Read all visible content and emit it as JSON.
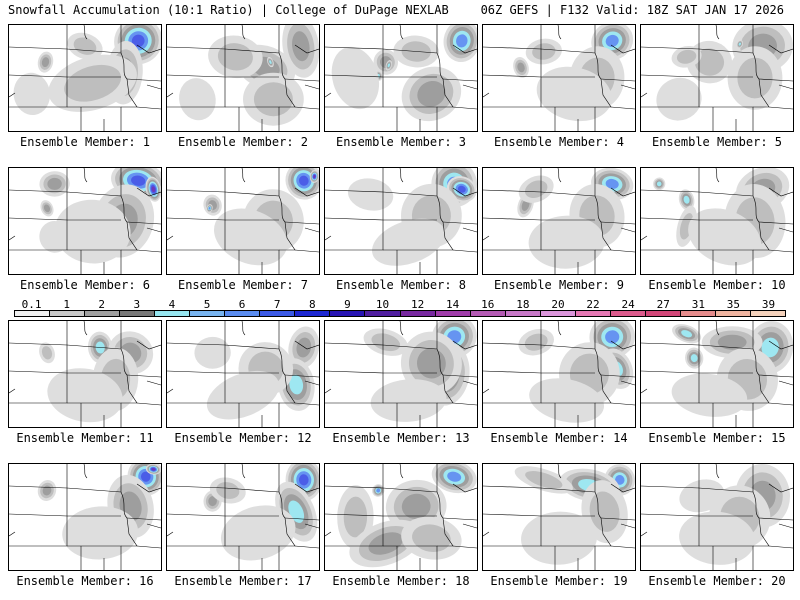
{
  "header": {
    "title_left": "Snowfall Accumulation (10:1 Ratio) | College of DuPage NEXLAB",
    "title_right": "06Z GEFS | F132 Valid: 18Z SAT JAN 17 2026"
  },
  "colorbar": {
    "levels": [
      "0.1",
      "1",
      "2",
      "3",
      "4",
      "5",
      "6",
      "7",
      "8",
      "9",
      "10",
      "12",
      "14",
      "16",
      "18",
      "20",
      "22",
      "24",
      "27",
      "31",
      "35",
      "39"
    ],
    "colors": [
      "#f0f0f0",
      "#c8c8c8",
      "#a0a0a0",
      "#787878",
      "#96e6f0",
      "#78b4f0",
      "#5a8cf0",
      "#3c5ae6",
      "#1e28d2",
      "#2814b4",
      "#501ea0",
      "#7828a0",
      "#a03caa",
      "#b45ab4",
      "#c878c8",
      "#dc96dc",
      "#e678b4",
      "#dc5a8c",
      "#d24678",
      "#e68c8c",
      "#f0b4a0",
      "#f5d2bc"
    ],
    "shade_scale": [
      "#ffffff",
      "#dcdcdc",
      "#b9b9b9",
      "#969696",
      "#96e6f0",
      "#5a8cf0",
      "#3c50e6",
      "#6428b4"
    ]
  },
  "members": [
    {
      "label": "Ensemble Member: 1",
      "spots": [
        [
          0.85,
          0.15,
          0.16,
          0.22,
          6
        ],
        [
          0.76,
          0.45,
          0.12,
          0.3,
          3
        ],
        [
          0.55,
          0.55,
          0.3,
          0.25,
          2
        ],
        [
          0.24,
          0.35,
          0.05,
          0.1,
          3
        ],
        [
          0.15,
          0.65,
          0.12,
          0.2,
          1
        ],
        [
          0.5,
          0.2,
          0.12,
          0.12,
          2
        ]
      ]
    },
    {
      "label": "Ensemble Member: 2",
      "spots": [
        [
          0.88,
          0.2,
          0.12,
          0.3,
          3
        ],
        [
          0.65,
          0.4,
          0.2,
          0.2,
          3
        ],
        [
          0.7,
          0.7,
          0.2,
          0.25,
          2
        ],
        [
          0.68,
          0.35,
          0.02,
          0.05,
          4
        ],
        [
          0.45,
          0.3,
          0.18,
          0.2,
          2
        ],
        [
          0.2,
          0.7,
          0.12,
          0.2,
          1
        ]
      ]
    },
    {
      "label": "Ensemble Member: 3",
      "spots": [
        [
          0.9,
          0.15,
          0.12,
          0.2,
          5
        ],
        [
          0.4,
          0.35,
          0.08,
          0.12,
          3
        ],
        [
          0.42,
          0.38,
          0.02,
          0.05,
          4
        ],
        [
          0.35,
          0.48,
          0.03,
          0.05,
          4
        ],
        [
          0.7,
          0.65,
          0.2,
          0.25,
          3
        ],
        [
          0.6,
          0.25,
          0.15,
          0.15,
          2
        ],
        [
          0.2,
          0.5,
          0.15,
          0.3,
          1
        ]
      ]
    },
    {
      "label": "Ensemble Member: 4",
      "spots": [
        [
          0.85,
          0.15,
          0.14,
          0.18,
          5
        ],
        [
          0.75,
          0.5,
          0.18,
          0.3,
          2
        ],
        [
          0.25,
          0.4,
          0.05,
          0.1,
          3
        ],
        [
          0.6,
          0.65,
          0.25,
          0.25,
          1
        ],
        [
          0.4,
          0.25,
          0.12,
          0.12,
          2
        ]
      ]
    },
    {
      "label": "Ensemble Member: 5",
      "spots": [
        [
          0.8,
          0.2,
          0.2,
          0.25,
          3
        ],
        [
          0.65,
          0.18,
          0.02,
          0.04,
          4
        ],
        [
          0.75,
          0.5,
          0.18,
          0.3,
          2
        ],
        [
          0.25,
          0.7,
          0.15,
          0.2,
          1
        ],
        [
          0.45,
          0.35,
          0.15,
          0.2,
          2
        ],
        [
          0.3,
          0.3,
          0.1,
          0.1,
          2
        ]
      ]
    },
    {
      "label": "Ensemble Member: 6",
      "spots": [
        [
          0.85,
          0.12,
          0.18,
          0.18,
          6
        ],
        [
          0.95,
          0.2,
          0.05,
          0.12,
          7
        ],
        [
          0.75,
          0.5,
          0.2,
          0.35,
          3
        ],
        [
          0.3,
          0.15,
          0.1,
          0.12,
          3
        ],
        [
          0.25,
          0.38,
          0.04,
          0.08,
          3
        ],
        [
          0.55,
          0.6,
          0.25,
          0.3,
          1
        ],
        [
          0.3,
          0.65,
          0.1,
          0.15,
          1
        ]
      ]
    },
    {
      "label": "Ensemble Member: 7",
      "spots": [
        [
          0.9,
          0.12,
          0.12,
          0.18,
          6
        ],
        [
          0.97,
          0.08,
          0.03,
          0.06,
          7
        ],
        [
          0.3,
          0.35,
          0.06,
          0.1,
          3
        ],
        [
          0.28,
          0.38,
          0.02,
          0.04,
          5
        ],
        [
          0.7,
          0.5,
          0.2,
          0.3,
          2
        ],
        [
          0.55,
          0.65,
          0.25,
          0.25,
          1
        ]
      ]
    },
    {
      "label": "Ensemble Member: 8",
      "spots": [
        [
          0.85,
          0.15,
          0.15,
          0.22,
          5
        ],
        [
          0.9,
          0.2,
          0.1,
          0.12,
          6
        ],
        [
          0.7,
          0.45,
          0.2,
          0.3,
          2
        ],
        [
          0.55,
          0.7,
          0.25,
          0.2,
          1
        ],
        [
          0.3,
          0.25,
          0.15,
          0.15,
          1
        ]
      ]
    },
    {
      "label": "Ensemble Member: 9",
      "spots": [
        [
          0.85,
          0.15,
          0.14,
          0.15,
          5
        ],
        [
          0.75,
          0.45,
          0.18,
          0.3,
          2
        ],
        [
          0.28,
          0.35,
          0.05,
          0.12,
          3
        ],
        [
          0.55,
          0.7,
          0.25,
          0.25,
          1
        ],
        [
          0.35,
          0.2,
          0.12,
          0.12,
          2
        ]
      ]
    },
    {
      "label": "Ensemble Member: 10",
      "spots": [
        [
          0.8,
          0.2,
          0.18,
          0.2,
          3
        ],
        [
          0.12,
          0.15,
          0.04,
          0.06,
          4
        ],
        [
          0.3,
          0.3,
          0.05,
          0.1,
          4
        ],
        [
          0.3,
          0.55,
          0.06,
          0.2,
          2
        ],
        [
          0.75,
          0.5,
          0.2,
          0.35,
          2
        ],
        [
          0.55,
          0.65,
          0.25,
          0.25,
          1
        ]
      ]
    },
    {
      "label": "Ensemble Member: 11",
      "spots": [
        [
          0.6,
          0.25,
          0.08,
          0.15,
          4
        ],
        [
          0.8,
          0.3,
          0.15,
          0.2,
          3
        ],
        [
          0.7,
          0.55,
          0.15,
          0.3,
          2
        ],
        [
          0.25,
          0.3,
          0.05,
          0.1,
          2
        ],
        [
          0.5,
          0.7,
          0.25,
          0.25,
          1
        ]
      ]
    },
    {
      "label": "Ensemble Member: 12",
      "spots": [
        [
          0.9,
          0.25,
          0.1,
          0.2,
          3
        ],
        [
          0.85,
          0.6,
          0.12,
          0.25,
          4
        ],
        [
          0.65,
          0.45,
          0.18,
          0.25,
          2
        ],
        [
          0.3,
          0.3,
          0.12,
          0.15,
          1
        ],
        [
          0.5,
          0.7,
          0.25,
          0.2,
          1
        ]
      ]
    },
    {
      "label": "Ensemble Member: 13",
      "spots": [
        [
          0.85,
          0.15,
          0.15,
          0.2,
          5
        ],
        [
          0.8,
          0.5,
          0.15,
          0.3,
          4
        ],
        [
          0.7,
          0.4,
          0.2,
          0.3,
          3
        ],
        [
          0.4,
          0.2,
          0.15,
          0.12,
          2
        ],
        [
          0.55,
          0.75,
          0.25,
          0.2,
          1
        ]
      ]
    },
    {
      "label": "Ensemble Member: 14",
      "spots": [
        [
          0.85,
          0.15,
          0.15,
          0.2,
          5
        ],
        [
          0.88,
          0.45,
          0.1,
          0.2,
          4
        ],
        [
          0.7,
          0.5,
          0.2,
          0.3,
          2
        ],
        [
          0.35,
          0.2,
          0.12,
          0.12,
          2
        ],
        [
          0.55,
          0.75,
          0.25,
          0.2,
          1
        ]
      ]
    },
    {
      "label": "Ensemble Member: 15",
      "spots": [
        [
          0.85,
          0.25,
          0.15,
          0.25,
          4
        ],
        [
          0.35,
          0.35,
          0.06,
          0.1,
          4
        ],
        [
          0.3,
          0.12,
          0.1,
          0.08,
          4
        ],
        [
          0.6,
          0.2,
          0.2,
          0.15,
          3
        ],
        [
          0.7,
          0.55,
          0.2,
          0.3,
          2
        ],
        [
          0.45,
          0.7,
          0.25,
          0.2,
          1
        ]
      ]
    },
    {
      "label": "Ensemble Member: 16",
      "spots": [
        [
          0.9,
          0.12,
          0.12,
          0.18,
          6
        ],
        [
          0.95,
          0.05,
          0.05,
          0.05,
          7
        ],
        [
          0.8,
          0.4,
          0.15,
          0.3,
          3
        ],
        [
          0.25,
          0.25,
          0.06,
          0.1,
          3
        ],
        [
          0.6,
          0.65,
          0.25,
          0.25,
          1
        ]
      ]
    },
    {
      "label": "Ensemble Member: 17",
      "spots": [
        [
          0.9,
          0.15,
          0.12,
          0.2,
          6
        ],
        [
          0.85,
          0.45,
          0.12,
          0.3,
          4
        ],
        [
          0.3,
          0.35,
          0.06,
          0.1,
          3
        ],
        [
          0.6,
          0.65,
          0.25,
          0.25,
          1
        ],
        [
          0.4,
          0.25,
          0.12,
          0.12,
          2
        ]
      ]
    },
    {
      "label": "Ensemble Member: 18",
      "spots": [
        [
          0.85,
          0.12,
          0.15,
          0.15,
          5
        ],
        [
          0.6,
          0.4,
          0.2,
          0.25,
          3
        ],
        [
          0.35,
          0.25,
          0.04,
          0.06,
          5
        ],
        [
          0.2,
          0.5,
          0.12,
          0.3,
          2
        ],
        [
          0.4,
          0.75,
          0.25,
          0.2,
          3
        ],
        [
          0.7,
          0.7,
          0.2,
          0.2,
          2
        ]
      ]
    },
    {
      "label": "Ensemble Member: 19",
      "spots": [
        [
          0.9,
          0.15,
          0.1,
          0.15,
          5
        ],
        [
          0.7,
          0.2,
          0.2,
          0.15,
          4
        ],
        [
          0.8,
          0.45,
          0.15,
          0.3,
          2
        ],
        [
          0.4,
          0.15,
          0.2,
          0.1,
          2
        ],
        [
          0.5,
          0.7,
          0.25,
          0.25,
          1
        ]
      ]
    },
    {
      "label": "Ensemble Member: 20",
      "spots": [
        [
          0.8,
          0.3,
          0.18,
          0.3,
          3
        ],
        [
          0.65,
          0.5,
          0.2,
          0.3,
          2
        ],
        [
          0.5,
          0.7,
          0.25,
          0.25,
          1
        ],
        [
          0.4,
          0.3,
          0.15,
          0.15,
          1
        ]
      ]
    }
  ]
}
